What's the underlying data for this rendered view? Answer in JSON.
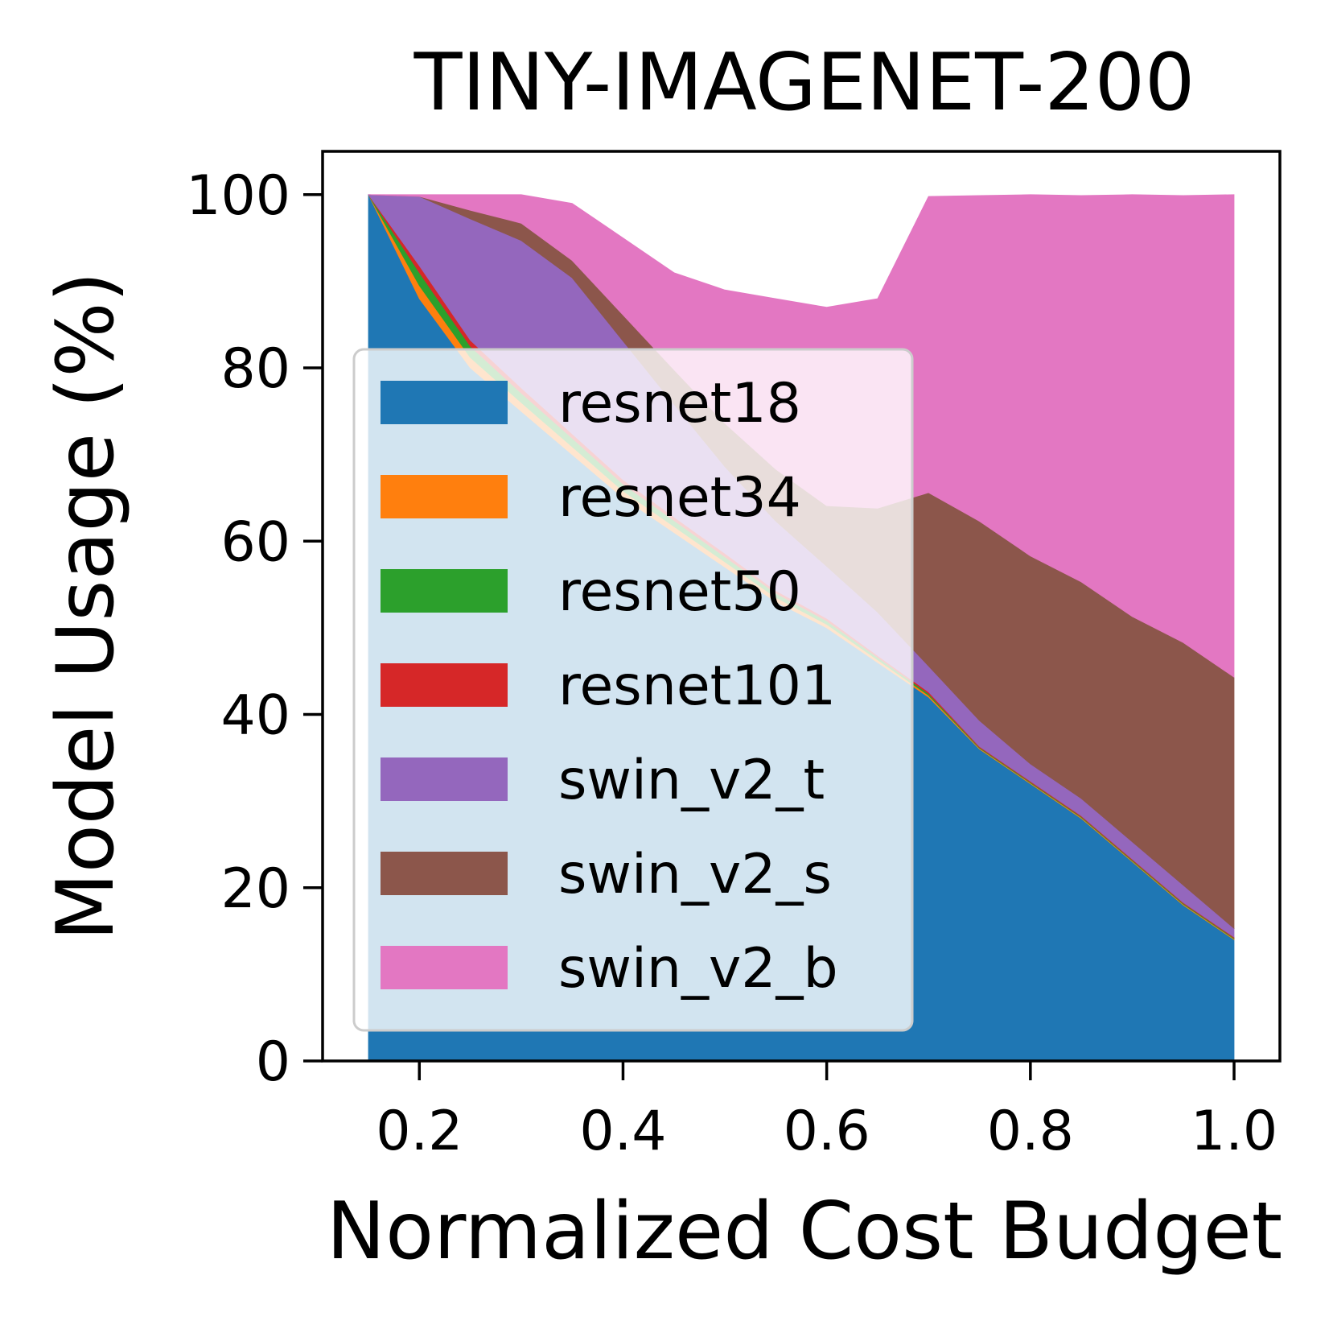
{
  "chart_data": {
    "type": "area",
    "stacked": true,
    "title": "TINY-IMAGENET-200",
    "xlabel": "Normalized Cost Budget",
    "ylabel": "Model Usage (%)",
    "xlim": [
      0.105,
      1.045
    ],
    "ylim": [
      0,
      105
    ],
    "xticks": [
      0.2,
      0.4,
      0.6,
      0.8,
      1.0
    ],
    "xtick_labels": [
      "0.2",
      "0.4",
      "0.6",
      "0.8",
      "1.0"
    ],
    "yticks": [
      0,
      20,
      40,
      60,
      80,
      100
    ],
    "ytick_labels": [
      "0",
      "20",
      "40",
      "60",
      "80",
      "100"
    ],
    "legend_position": "center-left",
    "x": [
      0.15,
      0.2,
      0.25,
      0.3,
      0.35,
      0.4,
      0.45,
      0.5,
      0.55,
      0.6,
      0.65,
      0.7,
      0.75,
      0.8,
      0.85,
      0.9,
      0.95,
      1.0
    ],
    "series": [
      {
        "name": "resnet18",
        "color": "#1f77b4",
        "values": [
          100,
          88,
          80,
          75,
          70,
          65,
          61,
          57,
          53,
          50,
          46,
          42,
          36,
          32,
          28,
          23,
          18,
          14
        ]
      },
      {
        "name": "resnet34",
        "color": "#ff7f0e",
        "values": [
          0,
          1.5,
          1.2,
          1.0,
          0.9,
          0.8,
          0.7,
          0.6,
          0.5,
          0.4,
          0.3,
          0.2,
          0.1,
          0.1,
          0.1,
          0.1,
          0.1,
          0.1
        ]
      },
      {
        "name": "resnet50",
        "color": "#2ca02c",
        "values": [
          0,
          1.5,
          1.3,
          1.1,
          1.0,
          0.8,
          0.7,
          0.6,
          0.5,
          0.4,
          0.3,
          0.2,
          0.1,
          0.1,
          0.1,
          0.1,
          0.1,
          0.1
        ]
      },
      {
        "name": "resnet101",
        "color": "#d62728",
        "values": [
          0,
          0.8,
          0.7,
          0.6,
          0.5,
          0.5,
          0.4,
          0.4,
          0.3,
          0.3,
          0.2,
          0.2,
          0.1,
          0.1,
          0.1,
          0.1,
          0.1,
          0.1
        ]
      },
      {
        "name": "swin_v2_t",
        "color": "#9467bd",
        "values": [
          0,
          8,
          14,
          17,
          18,
          16,
          13,
          10,
          8,
          6,
          5,
          3,
          3,
          2,
          2,
          2,
          2,
          1
        ]
      },
      {
        "name": "swin_v2_s",
        "color": "#8c564b",
        "values": [
          0,
          0,
          1,
          2,
          2,
          3,
          4,
          5,
          6,
          7,
          12,
          20,
          23,
          24,
          25,
          26,
          28,
          29
        ]
      },
      {
        "name": "swin_v2_b",
        "color": "#e377c2",
        "values": [
          0,
          0.2,
          1.8,
          3.3,
          6.6,
          8.9,
          11.2,
          15.4,
          19.7,
          22.9,
          24.2,
          34.2,
          37.6,
          41.7,
          44.6,
          48.7,
          51.6,
          55.7
        ]
      }
    ]
  }
}
